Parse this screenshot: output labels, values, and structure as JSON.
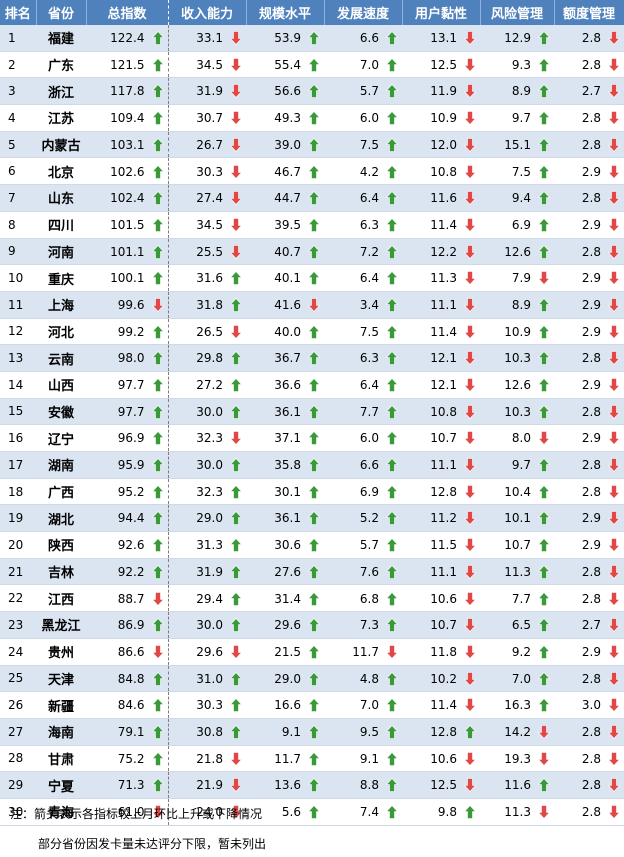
{
  "colors": {
    "header_bg": "#4f81bd",
    "header_text": "#ffffff",
    "row_alt": "#dbe5f1",
    "up": "#3a9a3a",
    "down": "#e04848"
  },
  "chart_data": {
    "type": "table",
    "columns": [
      "排名",
      "省份",
      "总指数",
      "收入能力",
      "规模水平",
      "发展速度",
      "用户黏性",
      "风险管理",
      "额度管理"
    ],
    "metric_keys": [
      "总指数",
      "收入能力",
      "规模水平",
      "发展速度",
      "用户黏性",
      "风险管理",
      "额度管理"
    ],
    "arrow_legend": {
      "up": "较上月上升",
      "down": "较上月下降"
    },
    "rows": [
      {
        "rank": "1",
        "province": "福建",
        "values": [
          "122.4",
          "33.1",
          "53.9",
          "6.6",
          "13.1",
          "12.9",
          "2.8"
        ],
        "arrows": [
          "up",
          "down",
          "up",
          "up",
          "down",
          "up",
          "down"
        ]
      },
      {
        "rank": "2",
        "province": "广东",
        "values": [
          "121.5",
          "34.5",
          "55.4",
          "7.0",
          "12.5",
          "9.3",
          "2.8"
        ],
        "arrows": [
          "up",
          "down",
          "up",
          "up",
          "down",
          "up",
          "down"
        ]
      },
      {
        "rank": "3",
        "province": "浙江",
        "values": [
          "117.8",
          "31.9",
          "56.6",
          "5.7",
          "11.9",
          "8.9",
          "2.7"
        ],
        "arrows": [
          "up",
          "down",
          "up",
          "up",
          "down",
          "up",
          "down"
        ]
      },
      {
        "rank": "4",
        "province": "江苏",
        "values": [
          "109.4",
          "30.7",
          "49.3",
          "6.0",
          "10.9",
          "9.7",
          "2.8"
        ],
        "arrows": [
          "up",
          "down",
          "up",
          "up",
          "down",
          "up",
          "down"
        ]
      },
      {
        "rank": "5",
        "province": "内蒙古",
        "values": [
          "103.1",
          "26.7",
          "39.0",
          "7.5",
          "12.0",
          "15.1",
          "2.8"
        ],
        "arrows": [
          "up",
          "down",
          "up",
          "up",
          "down",
          "up",
          "down"
        ]
      },
      {
        "rank": "6",
        "province": "北京",
        "values": [
          "102.6",
          "30.3",
          "46.7",
          "4.2",
          "10.8",
          "7.5",
          "2.9"
        ],
        "arrows": [
          "up",
          "down",
          "up",
          "up",
          "down",
          "up",
          "down"
        ]
      },
      {
        "rank": "7",
        "province": "山东",
        "values": [
          "102.4",
          "27.4",
          "44.7",
          "6.4",
          "11.6",
          "9.4",
          "2.8"
        ],
        "arrows": [
          "up",
          "down",
          "up",
          "up",
          "down",
          "up",
          "down"
        ]
      },
      {
        "rank": "8",
        "province": "四川",
        "values": [
          "101.5",
          "34.5",
          "39.5",
          "6.3",
          "11.4",
          "6.9",
          "2.9"
        ],
        "arrows": [
          "up",
          "down",
          "up",
          "up",
          "down",
          "up",
          "down"
        ]
      },
      {
        "rank": "9",
        "province": "河南",
        "values": [
          "101.1",
          "25.5",
          "40.7",
          "7.2",
          "12.2",
          "12.6",
          "2.8"
        ],
        "arrows": [
          "up",
          "down",
          "up",
          "up",
          "down",
          "up",
          "down"
        ]
      },
      {
        "rank": "10",
        "province": "重庆",
        "values": [
          "100.1",
          "31.6",
          "40.1",
          "6.4",
          "11.3",
          "7.9",
          "2.9"
        ],
        "arrows": [
          "up",
          "up",
          "up",
          "up",
          "down",
          "down",
          "down"
        ]
      },
      {
        "rank": "11",
        "province": "上海",
        "values": [
          "99.6",
          "31.8",
          "41.6",
          "3.4",
          "11.1",
          "8.9",
          "2.9"
        ],
        "arrows": [
          "down",
          "up",
          "down",
          "up",
          "down",
          "up",
          "down"
        ]
      },
      {
        "rank": "12",
        "province": "河北",
        "values": [
          "99.2",
          "26.5",
          "40.0",
          "7.5",
          "11.4",
          "10.9",
          "2.9"
        ],
        "arrows": [
          "up",
          "down",
          "up",
          "up",
          "down",
          "up",
          "down"
        ]
      },
      {
        "rank": "13",
        "province": "云南",
        "values": [
          "98.0",
          "29.8",
          "36.7",
          "6.3",
          "12.1",
          "10.3",
          "2.8"
        ],
        "arrows": [
          "up",
          "up",
          "up",
          "up",
          "down",
          "up",
          "down"
        ]
      },
      {
        "rank": "14",
        "province": "山西",
        "values": [
          "97.7",
          "27.2",
          "36.6",
          "6.4",
          "12.1",
          "12.6",
          "2.9"
        ],
        "arrows": [
          "up",
          "up",
          "up",
          "up",
          "down",
          "up",
          "down"
        ]
      },
      {
        "rank": "15",
        "province": "安徽",
        "values": [
          "97.7",
          "30.0",
          "36.1",
          "7.7",
          "10.8",
          "10.3",
          "2.8"
        ],
        "arrows": [
          "up",
          "up",
          "up",
          "up",
          "down",
          "up",
          "down"
        ]
      },
      {
        "rank": "16",
        "province": "辽宁",
        "values": [
          "96.9",
          "32.3",
          "37.1",
          "6.0",
          "10.7",
          "8.0",
          "2.9"
        ],
        "arrows": [
          "up",
          "down",
          "up",
          "up",
          "down",
          "down",
          "down"
        ]
      },
      {
        "rank": "17",
        "province": "湖南",
        "values": [
          "95.9",
          "30.0",
          "35.8",
          "6.6",
          "11.1",
          "9.7",
          "2.8"
        ],
        "arrows": [
          "up",
          "up",
          "up",
          "up",
          "down",
          "up",
          "down"
        ]
      },
      {
        "rank": "18",
        "province": "广西",
        "values": [
          "95.2",
          "32.3",
          "30.1",
          "6.9",
          "12.8",
          "10.4",
          "2.8"
        ],
        "arrows": [
          "up",
          "up",
          "up",
          "up",
          "down",
          "up",
          "down"
        ]
      },
      {
        "rank": "19",
        "province": "湖北",
        "values": [
          "94.4",
          "29.0",
          "36.1",
          "5.2",
          "11.2",
          "10.1",
          "2.9"
        ],
        "arrows": [
          "up",
          "up",
          "up",
          "up",
          "down",
          "up",
          "down"
        ]
      },
      {
        "rank": "20",
        "province": "陕西",
        "values": [
          "92.6",
          "31.3",
          "30.6",
          "5.7",
          "11.5",
          "10.7",
          "2.9"
        ],
        "arrows": [
          "up",
          "up",
          "up",
          "up",
          "down",
          "up",
          "down"
        ]
      },
      {
        "rank": "21",
        "province": "吉林",
        "values": [
          "92.2",
          "31.9",
          "27.6",
          "7.6",
          "11.1",
          "11.3",
          "2.8"
        ],
        "arrows": [
          "up",
          "up",
          "up",
          "up",
          "down",
          "up",
          "down"
        ]
      },
      {
        "rank": "22",
        "province": "江西",
        "values": [
          "88.7",
          "29.4",
          "31.4",
          "6.8",
          "10.6",
          "7.7",
          "2.8"
        ],
        "arrows": [
          "down",
          "up",
          "up",
          "up",
          "down",
          "up",
          "down"
        ]
      },
      {
        "rank": "23",
        "province": "黑龙江",
        "values": [
          "86.9",
          "30.0",
          "29.6",
          "7.3",
          "10.7",
          "6.5",
          "2.7"
        ],
        "arrows": [
          "up",
          "up",
          "up",
          "up",
          "down",
          "up",
          "down"
        ]
      },
      {
        "rank": "24",
        "province": "贵州",
        "values": [
          "86.6",
          "29.6",
          "21.5",
          "11.7",
          "11.8",
          "9.2",
          "2.9"
        ],
        "arrows": [
          "down",
          "down",
          "up",
          "down",
          "down",
          "up",
          "down"
        ]
      },
      {
        "rank": "25",
        "province": "天津",
        "values": [
          "84.8",
          "31.0",
          "29.0",
          "4.8",
          "10.2",
          "7.0",
          "2.8"
        ],
        "arrows": [
          "up",
          "up",
          "up",
          "up",
          "down",
          "up",
          "down"
        ]
      },
      {
        "rank": "26",
        "province": "新疆",
        "values": [
          "84.6",
          "30.3",
          "16.6",
          "7.0",
          "11.4",
          "16.3",
          "3.0"
        ],
        "arrows": [
          "up",
          "up",
          "up",
          "up",
          "down",
          "up",
          "down"
        ]
      },
      {
        "rank": "27",
        "province": "海南",
        "values": [
          "79.1",
          "30.8",
          "9.1",
          "9.5",
          "12.8",
          "14.2",
          "2.8"
        ],
        "arrows": [
          "up",
          "up",
          "up",
          "up",
          "up",
          "down",
          "down"
        ]
      },
      {
        "rank": "28",
        "province": "甘肃",
        "values": [
          "75.2",
          "21.8",
          "11.7",
          "9.1",
          "10.6",
          "19.3",
          "2.8"
        ],
        "arrows": [
          "up",
          "down",
          "up",
          "up",
          "down",
          "down",
          "down"
        ]
      },
      {
        "rank": "29",
        "province": "宁夏",
        "values": [
          "71.3",
          "21.9",
          "13.6",
          "8.8",
          "12.5",
          "11.6",
          "2.8"
        ],
        "arrows": [
          "up",
          "down",
          "up",
          "up",
          "down",
          "up",
          "down"
        ]
      },
      {
        "rank": "30",
        "province": "青海",
        "values": [
          "61.0",
          "24.0",
          "5.6",
          "7.4",
          "9.8",
          "11.3",
          "2.8"
        ],
        "arrows": [
          "down",
          "down",
          "up",
          "up",
          "up",
          "down",
          "down"
        ]
      }
    ]
  },
  "notes": {
    "line1": "注：箭头表示各指标较上月环比上升或下降情况",
    "line2": "部分省份因发卡量未达评分下限，暂未列出"
  }
}
